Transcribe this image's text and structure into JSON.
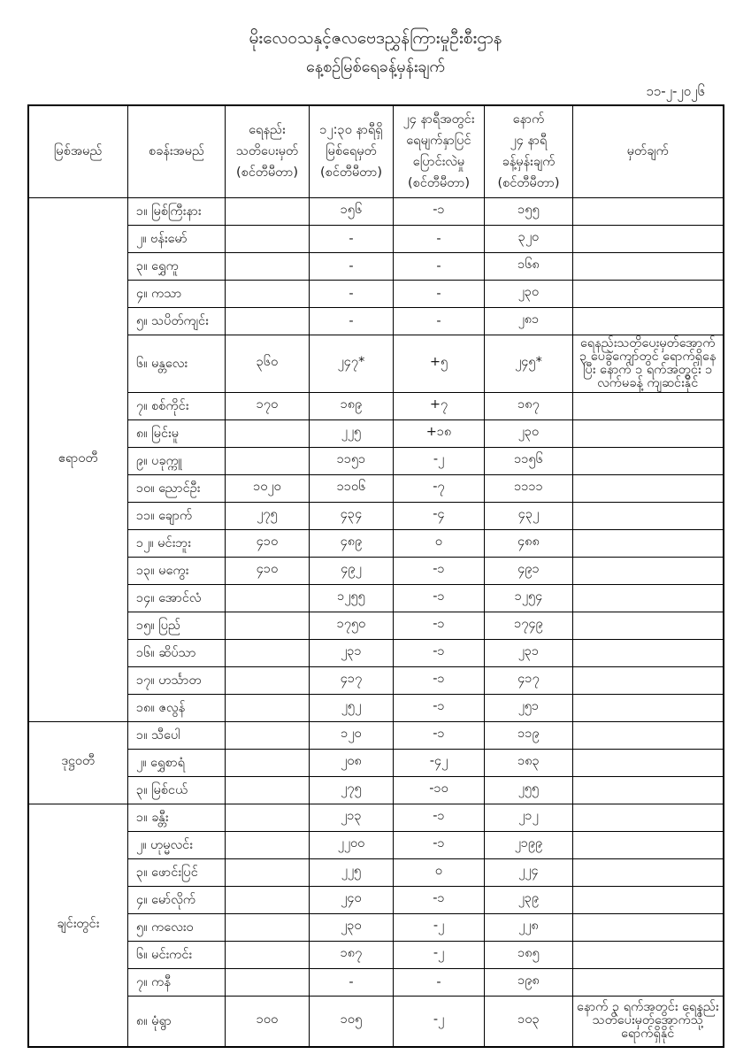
{
  "page": {
    "title_line1": "မိုးလေဝသနှင့်ဇလဗေဒညွှန်ကြားမှုဦးစီးဌာန",
    "title_line2": "နေ့စဉ်မြစ်ရေခန့်မှန်းချက်",
    "date": "၁၁-၂-၂၀၂၆"
  },
  "table": {
    "headers": {
      "river": "မြစ်အမည်",
      "station": "စခန်းအမည်",
      "warning": "ရေနည်း\nသတိပေးမှတ်\n(စင်တီမီတာ)",
      "level": "၁၂:၃၀ နာရီရှိ\nမြစ်ရေမှတ်\n(စင်တီမီတာ)",
      "change": "၂၄ နာရီအတွင်း\nရေမျက်နှာပြင်\nပြောင်းလဲမှု\n(စင်တီမီတာ)",
      "forecast": "နောက်\n၂၄ နာရီ\nခန့်မှန်းချက်\n(စင်တီမီတာ)",
      "remark": "မှတ်ချက်"
    },
    "sections": [
      {
        "river": "ဧရာဝတီ",
        "rows": [
          {
            "station": "၁။ မြစ်ကြီးနား",
            "warning": "",
            "level": "၁၅၆",
            "change": "-၁",
            "forecast": "၁၅၅",
            "remark": ""
          },
          {
            "station": "၂။ ဗန်းမော်",
            "warning": "",
            "level": "-",
            "change": "-",
            "forecast": "၃၂၀",
            "remark": ""
          },
          {
            "station": "၃။ ရွှေကူ",
            "warning": "",
            "level": "-",
            "change": "-",
            "forecast": "၁၆၈",
            "remark": ""
          },
          {
            "station": "၄။ ကသာ",
            "warning": "",
            "level": "-",
            "change": "-",
            "forecast": "၂၃၀",
            "remark": ""
          },
          {
            "station": "၅။ သပိတ်ကျင်း",
            "warning": "",
            "level": "-",
            "change": "-",
            "forecast": "၂၈၁",
            "remark": ""
          },
          {
            "station": "၆။ မန္တလေး",
            "warning": "၃၆၀",
            "level": "၂၄၇*",
            "change": "+၅",
            "forecast": "၂၄၅*",
            "remark": "ရေနည်းသတိပေးမှတ်အောက် ၃ ပေခွဲကျော်တွင် ရောက်ရှိနေပြီး နောက် ၁ ရက်အတွင်း ၁ လက်မခန့် ကျဆင်းနိုင်"
          },
          {
            "station": "၇။ စစ်ကိုင်း",
            "warning": "၁၇၀",
            "level": "၁၈၉",
            "change": "+၇",
            "forecast": "၁၈၇",
            "remark": ""
          },
          {
            "station": "၈။ မြင်းမူ",
            "warning": "",
            "level": "၂၂၅",
            "change": "+၁၈",
            "forecast": "၂၃၀",
            "remark": ""
          },
          {
            "station": "၉။ ပခုက္ကူ",
            "warning": "",
            "level": "၁၁၅၁",
            "change": "-၂",
            "forecast": "၁၁၅၆",
            "remark": ""
          },
          {
            "station": "၁၀။ ညောင်ဦး",
            "warning": "၁၀၂၀",
            "level": "၁၁၀၆",
            "change": "-၇",
            "forecast": "၁၁၁၁",
            "remark": ""
          },
          {
            "station": "၁၁။ ချောက်",
            "warning": "၂၇၅",
            "level": "၄၃၄",
            "change": "-၄",
            "forecast": "၄၃၂",
            "remark": ""
          },
          {
            "station": "၁၂။ မင်းဘူး",
            "warning": "၄၁၀",
            "level": "၄၈၉",
            "change": "၀",
            "forecast": "၄၈၈",
            "remark": ""
          },
          {
            "station": "၁၃။ မကွေး",
            "warning": "၄၁၀",
            "level": "၄၉၂",
            "change": "-၁",
            "forecast": "၄၉၁",
            "remark": ""
          },
          {
            "station": "၁၄။ အောင်လံ",
            "warning": "",
            "level": "၁၂၅၅",
            "change": "-၁",
            "forecast": "၁၂၅၄",
            "remark": ""
          },
          {
            "station": "၁၅။ ပြည်",
            "warning": "",
            "level": "၁၇၅၀",
            "change": "-၁",
            "forecast": "၁၇၄၉",
            "remark": ""
          },
          {
            "station": "၁၆။ ဆိပ်သာ",
            "warning": "",
            "level": "၂၃၁",
            "change": "-၁",
            "forecast": "၂၃၁",
            "remark": ""
          },
          {
            "station": "၁၇။ ဟင်္သာတ",
            "warning": "",
            "level": "၄၁၇",
            "change": "-၁",
            "forecast": "၄၁၇",
            "remark": ""
          },
          {
            "station": "၁၈။ ဇလွန်",
            "warning": "",
            "level": "၂၅၂",
            "change": "-၁",
            "forecast": "၂၅၁",
            "remark": ""
          }
        ]
      },
      {
        "river": "ဒုဋ္ဌဝတီ",
        "rows": [
          {
            "station": "၁။ သီပေါ",
            "warning": "",
            "level": "၁၂၀",
            "change": "-၁",
            "forecast": "၁၁၉",
            "remark": ""
          },
          {
            "station": "၂။ ရွှေစာရံ",
            "warning": "",
            "level": "၂၀၈",
            "change": "-၄၂",
            "forecast": "၁၈၃",
            "remark": ""
          },
          {
            "station": "၃။ မြစ်ငယ်",
            "warning": "",
            "level": "၂၇၅",
            "change": "-၁၀",
            "forecast": "၂၅၅",
            "remark": ""
          }
        ]
      },
      {
        "river": "ချင်းတွင်း",
        "rows": [
          {
            "station": "၁။ ခန္တီး",
            "warning": "",
            "level": "၂၁၃",
            "change": "-၁",
            "forecast": "၂၁၂",
            "remark": ""
          },
          {
            "station": "၂။ ဟုမ္မလင်း",
            "warning": "",
            "level": "၂၂၀၀",
            "change": "-၁",
            "forecast": "၂၁၉၉",
            "remark": ""
          },
          {
            "station": "၃။ ဖောင်းပြင်",
            "warning": "",
            "level": "၂၂၅",
            "change": "၀",
            "forecast": "၂၂၄",
            "remark": ""
          },
          {
            "station": "၄။ မော်လိုက်",
            "warning": "",
            "level": "၂၄၀",
            "change": "-၁",
            "forecast": "၂၃၉",
            "remark": ""
          },
          {
            "station": "၅။ ကလေးဝ",
            "warning": "",
            "level": "၂၃၀",
            "change": "-၂",
            "forecast": "၂၂၈",
            "remark": ""
          },
          {
            "station": "၆။ မင်းကင်း",
            "warning": "",
            "level": "၁၈၇",
            "change": "-၂",
            "forecast": "၁၈၅",
            "remark": ""
          },
          {
            "station": "၇။ ကနီ",
            "warning": "",
            "level": "-",
            "change": "-",
            "forecast": "၁၉၈",
            "remark": ""
          },
          {
            "station": "၈။ မုံရွာ",
            "warning": "၁၀၀",
            "level": "၁၀၅",
            "change": "-၂",
            "forecast": "၁၀၃",
            "remark": "နောက် ၃ ရက်အတွင်း ရေနည်းသတိပေးမှတ်အောက်သို့ ရောက်ရှိနိုင်"
          }
        ]
      }
    ]
  }
}
